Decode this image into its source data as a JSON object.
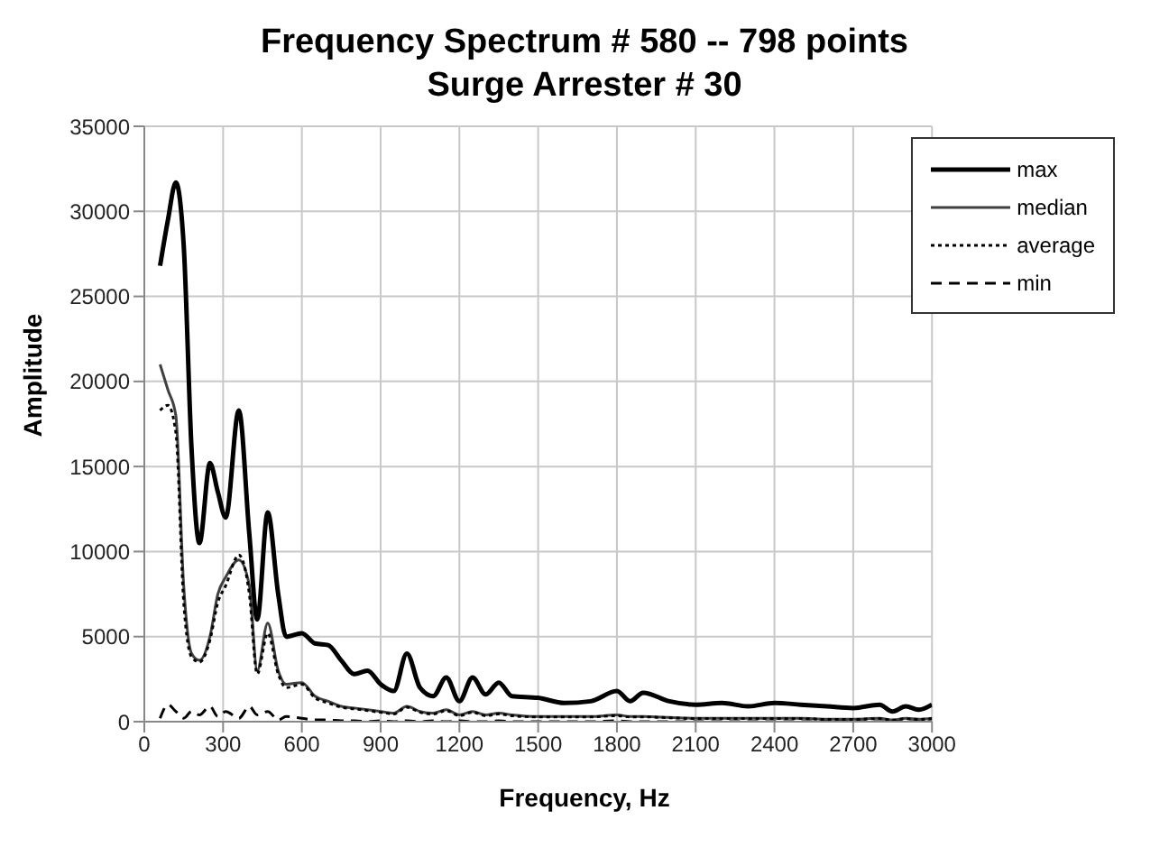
{
  "chart_data": {
    "type": "line",
    "title": "Frequency Spectrum # 580 -- 798 points",
    "subtitle": "Surge Arrester # 30",
    "xlabel": "Frequency, Hz",
    "ylabel": "Amplitude",
    "x": [
      60,
      90,
      120,
      150,
      180,
      210,
      250,
      280,
      310,
      360,
      400,
      430,
      470,
      510,
      540,
      600,
      650,
      700,
      750,
      800,
      850,
      900,
      950,
      1000,
      1050,
      1100,
      1150,
      1200,
      1250,
      1300,
      1350,
      1400,
      1500,
      1600,
      1700,
      1800,
      1850,
      1900,
      2000,
      2100,
      2200,
      2300,
      2400,
      2500,
      2600,
      2700,
      2800,
      2850,
      2900,
      2950,
      3000
    ],
    "series": [
      {
        "name": "max",
        "color": "#000000",
        "line_style": "solid",
        "values": [
          26800,
          29500,
          31700,
          28000,
          16000,
          10500,
          15200,
          13500,
          12000,
          18300,
          11000,
          6000,
          12300,
          7500,
          5000,
          5200,
          4600,
          4500,
          3600,
          2800,
          3000,
          2200,
          1800,
          4000,
          2000,
          1500,
          2600,
          1200,
          2600,
          1600,
          2300,
          1500,
          1400,
          1100,
          1200,
          1800,
          1200,
          1700,
          1200,
          1000,
          1100,
          900,
          1100,
          1000,
          900,
          800,
          1000,
          600,
          900,
          700,
          1000
        ]
      },
      {
        "name": "median",
        "color": "#404040",
        "line_style": "solid",
        "values": [
          21000,
          19500,
          18000,
          8000,
          4000,
          3600,
          5000,
          7500,
          8500,
          9500,
          8000,
          3000,
          5800,
          3000,
          2200,
          2300,
          1500,
          1200,
          900,
          800,
          700,
          600,
          500,
          900,
          600,
          500,
          700,
          400,
          600,
          400,
          500,
          400,
          300,
          300,
          300,
          400,
          300,
          300,
          250,
          200,
          200,
          200,
          200,
          200,
          150,
          150,
          200,
          100,
          200,
          150,
          200
        ]
      },
      {
        "name": "average",
        "color": "#000000",
        "line_style": "dotted",
        "values": [
          18300,
          18600,
          17000,
          7000,
          3800,
          3500,
          4800,
          7000,
          8000,
          9800,
          7500,
          2800,
          5200,
          2800,
          2000,
          2200,
          1400,
          1100,
          850,
          750,
          650,
          550,
          450,
          850,
          550,
          450,
          650,
          350,
          550,
          350,
          450,
          350,
          280,
          280,
          280,
          350,
          280,
          280,
          230,
          180,
          180,
          180,
          180,
          180,
          130,
          130,
          180,
          90,
          180,
          130,
          180
        ]
      },
      {
        "name": "min",
        "color": "#000000",
        "line_style": "dashed",
        "values": [
          200,
          1000,
          600,
          200,
          600,
          400,
          900,
          300,
          600,
          200,
          900,
          400,
          600,
          100,
          300,
          200,
          100,
          100,
          50,
          50,
          0,
          50,
          0,
          50,
          0,
          50,
          0,
          50,
          0,
          0,
          50,
          0,
          0,
          0,
          0,
          50,
          0,
          0,
          0,
          0,
          0,
          0,
          0,
          0,
          0,
          0,
          0,
          0,
          0,
          0,
          0
        ]
      }
    ],
    "xlim": [
      0,
      3000
    ],
    "xticks": [
      0,
      300,
      600,
      900,
      1200,
      1500,
      1800,
      2100,
      2400,
      2700,
      3000
    ],
    "ylim": [
      0,
      35000
    ],
    "yticks": [
      0,
      5000,
      10000,
      15000,
      20000,
      25000,
      30000,
      35000
    ],
    "grid": true,
    "legend": "top right",
    "marker": "none"
  }
}
